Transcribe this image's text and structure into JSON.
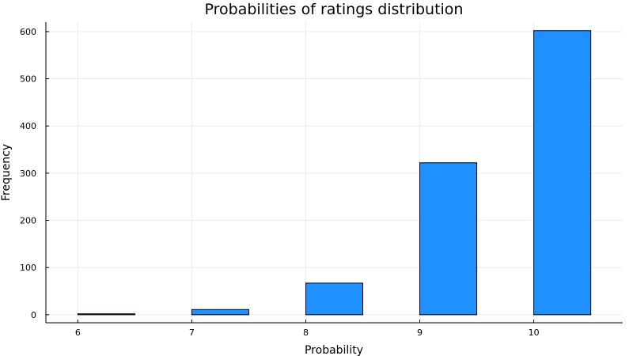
{
  "chart_data": {
    "type": "bar",
    "title": "Probabilities of ratings distribution",
    "xlabel": "Probability",
    "ylabel": "Frequency",
    "x_ticks": [
      6,
      7,
      8,
      9,
      10
    ],
    "y_ticks": [
      0,
      100,
      200,
      300,
      400,
      500,
      600
    ],
    "xlim": [
      5.72,
      10.78
    ],
    "ylim": [
      -17,
      620
    ],
    "grid": true,
    "bar_color": "#1e90ff",
    "bins": [
      {
        "start": 6.0,
        "end": 6.5,
        "value": 2
      },
      {
        "start": 6.5,
        "end": 7.0,
        "value": 0
      },
      {
        "start": 7.0,
        "end": 7.5,
        "value": 11
      },
      {
        "start": 7.5,
        "end": 8.0,
        "value": 0
      },
      {
        "start": 8.0,
        "end": 8.5,
        "value": 67
      },
      {
        "start": 8.5,
        "end": 9.0,
        "value": 0
      },
      {
        "start": 9.0,
        "end": 9.5,
        "value": 322
      },
      {
        "start": 9.5,
        "end": 10.0,
        "value": 0
      },
      {
        "start": 10.0,
        "end": 10.5,
        "value": 602
      }
    ]
  }
}
